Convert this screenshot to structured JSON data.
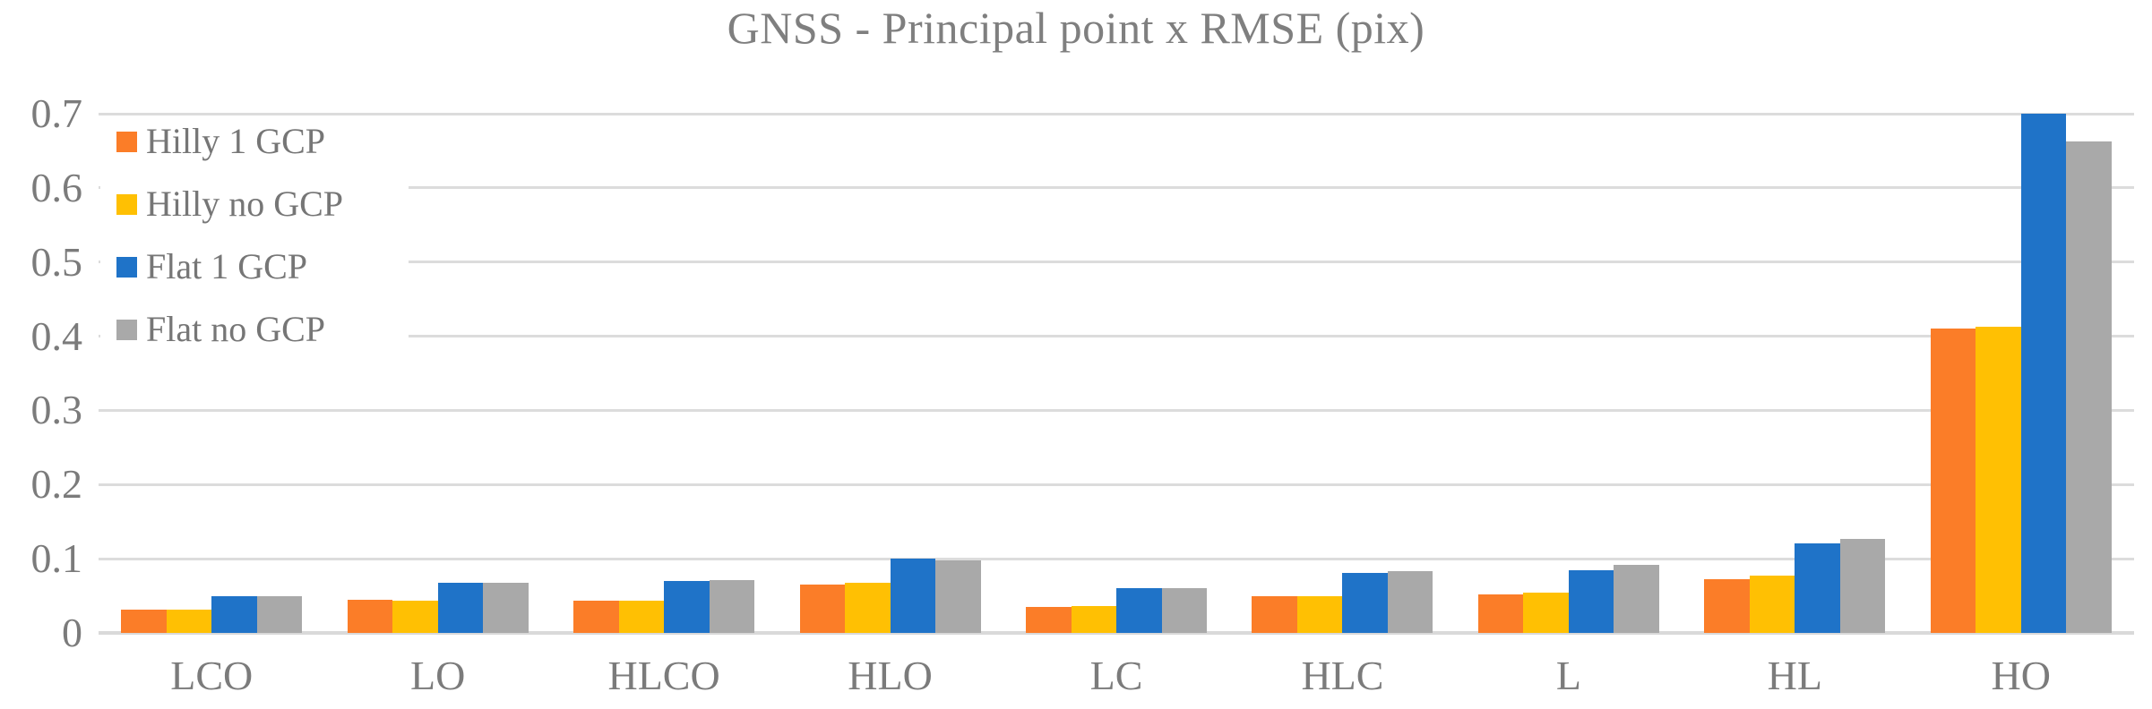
{
  "chart": {
    "title": "GNSS - Principal point x RMSE (pix)"
  },
  "colors": {
    "title_text": "#7f7f7f",
    "axis_text": "#7b7b7b",
    "legend_text": "#767676",
    "gridline": "#dcdcdc",
    "baseline": "#d9d9d9",
    "background": "#ffffff"
  },
  "chart_data": {
    "type": "bar",
    "title": "GNSS - Principal point x RMSE (pix)",
    "xlabel": "",
    "ylabel": "",
    "ylim": [
      0,
      0.7
    ],
    "ytick_step": 0.1,
    "ytick_labels": [
      "0",
      "0.1",
      "0.2",
      "0.3",
      "0.4",
      "0.5",
      "0.6",
      "0.7"
    ],
    "grid": true,
    "legend_position": "top-left-inside",
    "categories": [
      "LCO",
      "LO",
      "HLCO",
      "HLO",
      "LC",
      "HLC",
      "L",
      "HL",
      "HO"
    ],
    "series": [
      {
        "name": "Hilly 1 GCP",
        "color": "#FB7D28",
        "values": [
          0.031,
          0.045,
          0.044,
          0.065,
          0.035,
          0.05,
          0.052,
          0.072,
          0.41
        ]
      },
      {
        "name": "Hilly no GCP",
        "color": "#FFC003",
        "values": [
          0.031,
          0.043,
          0.044,
          0.067,
          0.036,
          0.05,
          0.054,
          0.077,
          0.413
        ]
      },
      {
        "name": "Flat 1 GCP",
        "color": "#1F73C8",
        "values": [
          0.05,
          0.067,
          0.07,
          0.1,
          0.06,
          0.081,
          0.085,
          0.121,
          0.7
        ]
      },
      {
        "name": "Flat no GCP",
        "color": "#A9A9A9",
        "values": [
          0.05,
          0.067,
          0.071,
          0.098,
          0.06,
          0.083,
          0.092,
          0.127,
          0.663
        ]
      }
    ]
  }
}
